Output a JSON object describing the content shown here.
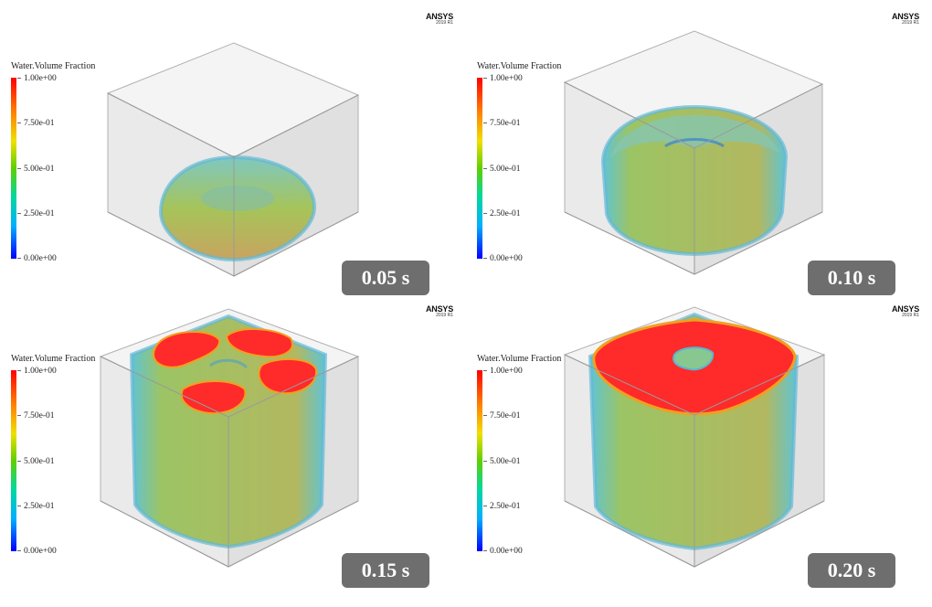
{
  "panels": [
    {
      "legend_title": "Water.Volume Fraction",
      "ticks": [
        "1.00e+00",
        "7.50e-01",
        "5.00e-01",
        "2.50e-01",
        "0.00e+00"
      ],
      "brand": "ANSYS",
      "version": "2019 R1",
      "time": "0.05 s"
    },
    {
      "legend_title": "Water.Volume Fraction",
      "ticks": [
        "1.00e+00",
        "7.50e-01",
        "5.00e-01",
        "2.50e-01",
        "0.00e+00"
      ],
      "brand": "ANSYS",
      "version": "2019 R1",
      "time": "0.10 s"
    },
    {
      "legend_title": "Water.Volume Fraction",
      "ticks": [
        "1.00e+00",
        "7.50e-01",
        "5.00e-01",
        "2.50e-01",
        "0.00e+00"
      ],
      "brand": "ANSYS",
      "version": "2019 R1",
      "time": "0.15 s"
    },
    {
      "legend_title": "Water.Volume Fraction",
      "ticks": [
        "1.00e+00",
        "7.50e-01",
        "5.00e-01",
        "2.50e-01",
        "0.00e+00"
      ],
      "brand": "ANSYS",
      "version": "2019 R1",
      "time": "0.20 s"
    }
  ],
  "colors": {
    "badge": "#6e6e6e",
    "liquid_core": "#ff2020",
    "liquid_mid": "#9bc44a",
    "liquid_edge": "#3cb4d8"
  }
}
